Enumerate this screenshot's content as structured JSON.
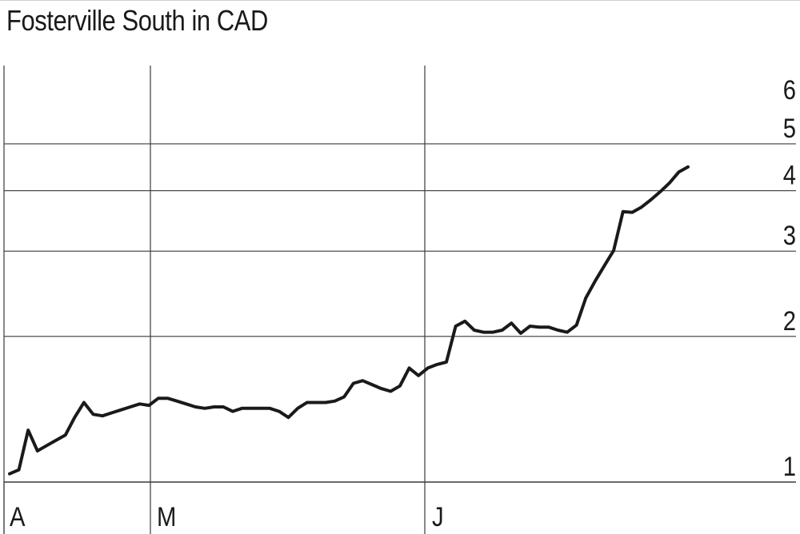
{
  "chart_data": {
    "type": "line",
    "title": "Fosterville South in CAD",
    "xlabel": "",
    "ylabel": "",
    "y_scale": "log",
    "ylim": [
      1,
      6
    ],
    "y_ticks": [
      1,
      2,
      3,
      4,
      5,
      6
    ],
    "x_tick_labels": [
      "A",
      "M",
      "J"
    ],
    "grid": true,
    "series": [
      {
        "values": [
          1.04,
          1.06,
          1.28,
          1.16,
          1.19,
          1.22,
          1.25,
          1.36,
          1.46,
          1.38,
          1.37,
          1.39,
          1.41,
          1.43,
          1.45,
          1.44,
          1.49,
          1.49,
          1.47,
          1.45,
          1.43,
          1.42,
          1.43,
          1.43,
          1.4,
          1.42,
          1.42,
          1.42,
          1.42,
          1.4,
          1.36,
          1.42,
          1.46,
          1.46,
          1.46,
          1.47,
          1.5,
          1.6,
          1.62,
          1.59,
          1.56,
          1.54,
          1.58,
          1.72,
          1.66,
          1.72,
          1.75,
          1.77,
          2.1,
          2.15,
          2.06,
          2.04,
          2.04,
          2.06,
          2.13,
          2.03,
          2.1,
          2.09,
          2.09,
          2.06,
          2.04,
          2.11,
          2.4,
          2.6,
          2.8,
          3.01,
          3.62,
          3.61,
          3.7,
          3.83,
          3.98,
          4.15,
          4.37,
          4.48
        ]
      }
    ]
  }
}
